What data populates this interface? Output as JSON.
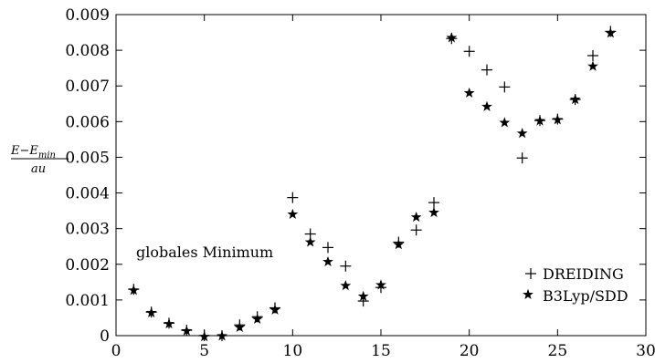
{
  "chart_data": {
    "type": "scatter",
    "xlim": [
      0,
      30
    ],
    "ylim": [
      0,
      0.009
    ],
    "x_ticks": [
      "0",
      "5",
      "10",
      "15",
      "20",
      "25",
      "30"
    ],
    "y_ticks": [
      "0",
      "0.001",
      "0.002",
      "0.003",
      "0.004",
      "0.005",
      "0.006",
      "0.007",
      "0.008",
      "0.009"
    ],
    "ylabel": {
      "numerator": "E−E",
      "numerator_sub": "min",
      "denominator": "au"
    },
    "annotation": "globales Minimum",
    "legend_position": "bottom-right",
    "series": [
      {
        "name": "DREIDING",
        "marker": "plus",
        "x": [
          1,
          2,
          3,
          4,
          5,
          6,
          7,
          8,
          9,
          10,
          11,
          12,
          13,
          14,
          15,
          16,
          17,
          18,
          19,
          20,
          21,
          22,
          23,
          24,
          25,
          26,
          27,
          28
        ],
        "y": [
          0.0013,
          0.00066,
          0.00035,
          0.00015,
          0.0,
          0.0,
          0.0003,
          0.00053,
          0.00078,
          0.00387,
          0.00285,
          0.00247,
          0.00195,
          0.00097,
          0.00135,
          0.00262,
          0.00296,
          0.00373,
          0.00833,
          0.00797,
          0.00745,
          0.00697,
          0.00498,
          0.00603,
          0.00607,
          0.00662,
          0.00785,
          0.00853
        ]
      },
      {
        "name": "B3Lyp/SDD",
        "marker": "star",
        "x": [
          1,
          2,
          3,
          4,
          5,
          6,
          7,
          8,
          9,
          10,
          11,
          12,
          13,
          14,
          15,
          16,
          17,
          18,
          19,
          20,
          21,
          22,
          23,
          24,
          25,
          26,
          27,
          28
        ],
        "y": [
          0.00127,
          0.00064,
          0.00033,
          0.00013,
          -3e-05,
          -1e-05,
          0.00023,
          0.00046,
          0.00072,
          0.0034,
          0.00262,
          0.00207,
          0.0014,
          0.0011,
          0.00142,
          0.00255,
          0.00332,
          0.00345,
          0.00835,
          0.0068,
          0.00642,
          0.00597,
          0.00567,
          0.00602,
          0.00605,
          0.00662,
          0.00755,
          0.00848
        ]
      }
    ]
  }
}
